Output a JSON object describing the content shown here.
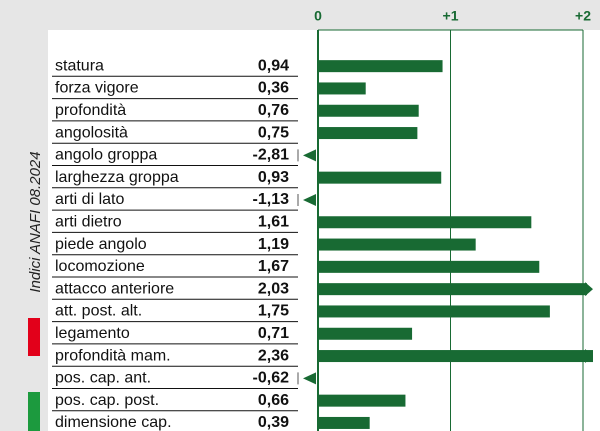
{
  "chart_data": {
    "type": "bar",
    "orientation": "horizontal",
    "side_note": "Indici ANAFI 08.2024",
    "categories": [
      "statura",
      "forza vigore",
      "profondità",
      "angolosità",
      "angolo groppa",
      "larghezza groppa",
      "arti di lato",
      "arti dietro",
      "piede angolo",
      "locomozione",
      "attacco anteriore",
      "att. post. alt.",
      "legamento",
      "profondità mam.",
      "pos. cap. ant.",
      "pos. cap. post.",
      "dimensione cap."
    ],
    "values": [
      0.94,
      0.36,
      0.76,
      0.75,
      -2.81,
      0.93,
      -1.13,
      1.61,
      1.19,
      1.67,
      2.03,
      1.75,
      0.71,
      2.36,
      -0.62,
      0.66,
      0.39
    ],
    "value_labels": [
      "0,94",
      "0,36",
      "0,76",
      "0,75",
      "-2,81",
      "0,93",
      "-1,13",
      "1,61",
      "1,19",
      "1,67",
      "2,03",
      "1,75",
      "0,71",
      "2,36",
      "-0,62",
      "0,66",
      "0,39"
    ],
    "color": "#186a33",
    "xlim": [
      0,
      2
    ],
    "xticks": [
      {
        "value": 0,
        "label": "0"
      },
      {
        "value": 1,
        "label": "+1"
      },
      {
        "value": 2,
        "label": "+2"
      }
    ],
    "grid": true
  }
}
